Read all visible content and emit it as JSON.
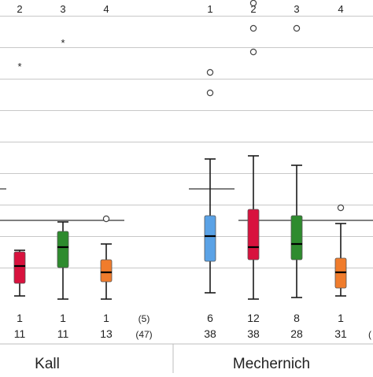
{
  "chart_data": {
    "type": "boxplot",
    "ylim": [
      0,
      11
    ],
    "grid": true,
    "colors": {
      "1": "#5aa2e6",
      "2": "#d8123e",
      "3": "#2e8b2e",
      "4": "#f07c2c"
    },
    "groups": [
      {
        "name": "Kall",
        "categories": [
          {
            "cat": "2",
            "n_top": "1",
            "n_bottom": "11",
            "color_key": "2",
            "min": 0.1,
            "q1": 0.5,
            "median": 1.05,
            "q3": 1.5,
            "max": 1.55,
            "outliers": [
              {
                "y": 7.4,
                "symbol": "star"
              }
            ]
          },
          {
            "cat": "3",
            "n_top": "1",
            "n_bottom": "11",
            "color_key": "3",
            "min": 0.0,
            "q1": 1.0,
            "median": 1.65,
            "q3": 2.15,
            "max": 2.45,
            "outliers": [
              {
                "y": 8.15,
                "symbol": "star"
              }
            ]
          },
          {
            "cat": "4",
            "n_top": "1",
            "n_bottom": "13",
            "color_key": "4",
            "min": 0.0,
            "q1": 0.55,
            "median": 0.85,
            "q3": 1.25,
            "max": 1.75,
            "outliers": [
              {
                "y": 2.55,
                "symbol": "circle"
              }
            ]
          },
          {
            "cat": "",
            "n_top": "(5)",
            "n_bottom": "(47)",
            "color_key": ""
          }
        ],
        "reference_line": 2.5
      },
      {
        "name": "Mechernich",
        "categories": [
          {
            "cat": "1",
            "n_top": "6",
            "n_bottom": "38",
            "color_key": "1",
            "min": 0.2,
            "q1": 1.2,
            "median": 2.0,
            "q3": 2.65,
            "max": 4.45,
            "outliers": [
              {
                "y": 6.55,
                "symbol": "circle"
              },
              {
                "y": 7.2,
                "symbol": "circle"
              }
            ]
          },
          {
            "cat": "2",
            "n_top": "12",
            "n_bottom": "38",
            "color_key": "2",
            "min": 0.0,
            "q1": 1.25,
            "median": 1.65,
            "q3": 2.85,
            "max": 4.55,
            "outliers": [
              {
                "y": 7.85,
                "symbol": "circle"
              },
              {
                "y": 8.6,
                "symbol": "circle"
              },
              {
                "y": 9.4,
                "symbol": "circle"
              }
            ]
          },
          {
            "cat": "3",
            "n_top": "8",
            "n_bottom": "28",
            "color_key": "3",
            "min": 0.05,
            "q1": 1.25,
            "median": 1.75,
            "q3": 2.65,
            "max": 4.25,
            "outliers": [
              {
                "y": 8.6,
                "symbol": "circle"
              }
            ]
          },
          {
            "cat": "4",
            "n_top": "1",
            "n_bottom": "31",
            "color_key": "4",
            "min": 0.1,
            "q1": 0.35,
            "median": 0.85,
            "q3": 1.3,
            "max": 2.4,
            "outliers": [
              {
                "y": 2.9,
                "symbol": "circle"
              }
            ]
          }
        ],
        "reference_line": 3.5,
        "reference_line_2": 2.5
      }
    ],
    "partial_count_label": "("
  }
}
